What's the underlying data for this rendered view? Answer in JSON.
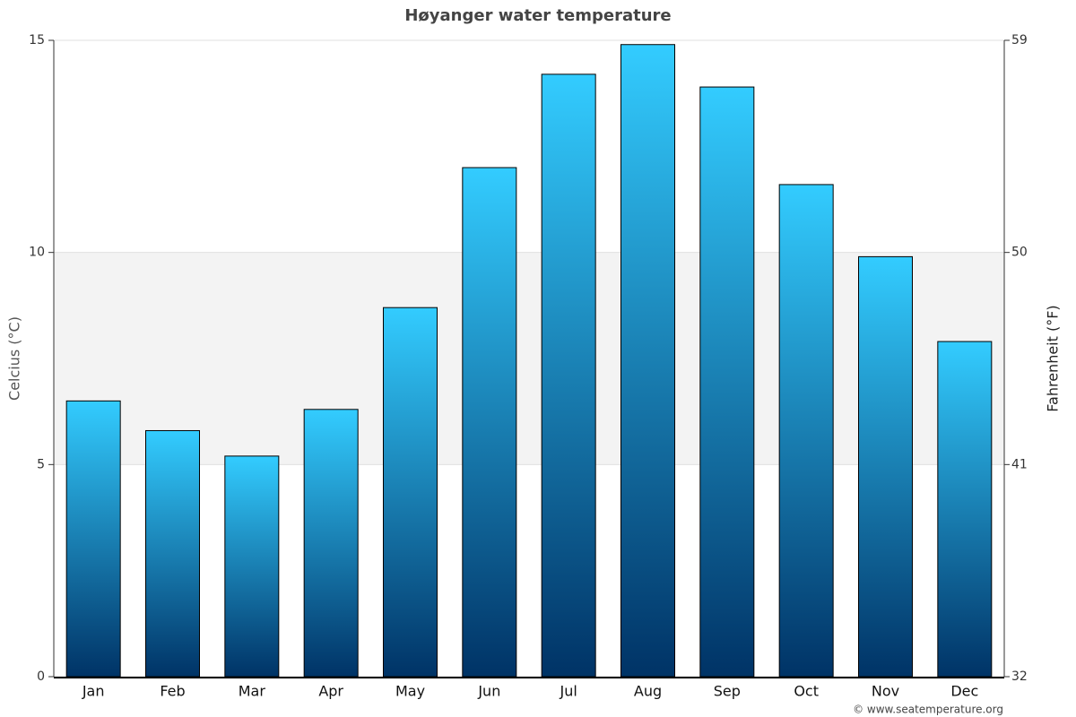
{
  "chart_data": {
    "type": "bar",
    "title": "Høyanger water temperature",
    "categories": [
      "Jan",
      "Feb",
      "Mar",
      "Apr",
      "May",
      "Jun",
      "Jul",
      "Aug",
      "Sep",
      "Oct",
      "Nov",
      "Dec"
    ],
    "values": [
      6.5,
      5.8,
      5.2,
      6.3,
      8.7,
      12.0,
      14.2,
      14.9,
      13.9,
      11.6,
      9.9,
      7.9
    ],
    "color": [
      "#33ccff",
      "#003366"
    ],
    "ylabel": "Celcius (°C)",
    "y2label": "Fahrenheit (°F)",
    "ylim": [
      0,
      15
    ],
    "yticks": [
      0,
      5,
      10,
      15
    ],
    "y2lim": [
      32,
      59
    ],
    "y2ticks": [
      32,
      41,
      50,
      59
    ],
    "grid": true,
    "footer": "© www.seatemperature.org"
  }
}
